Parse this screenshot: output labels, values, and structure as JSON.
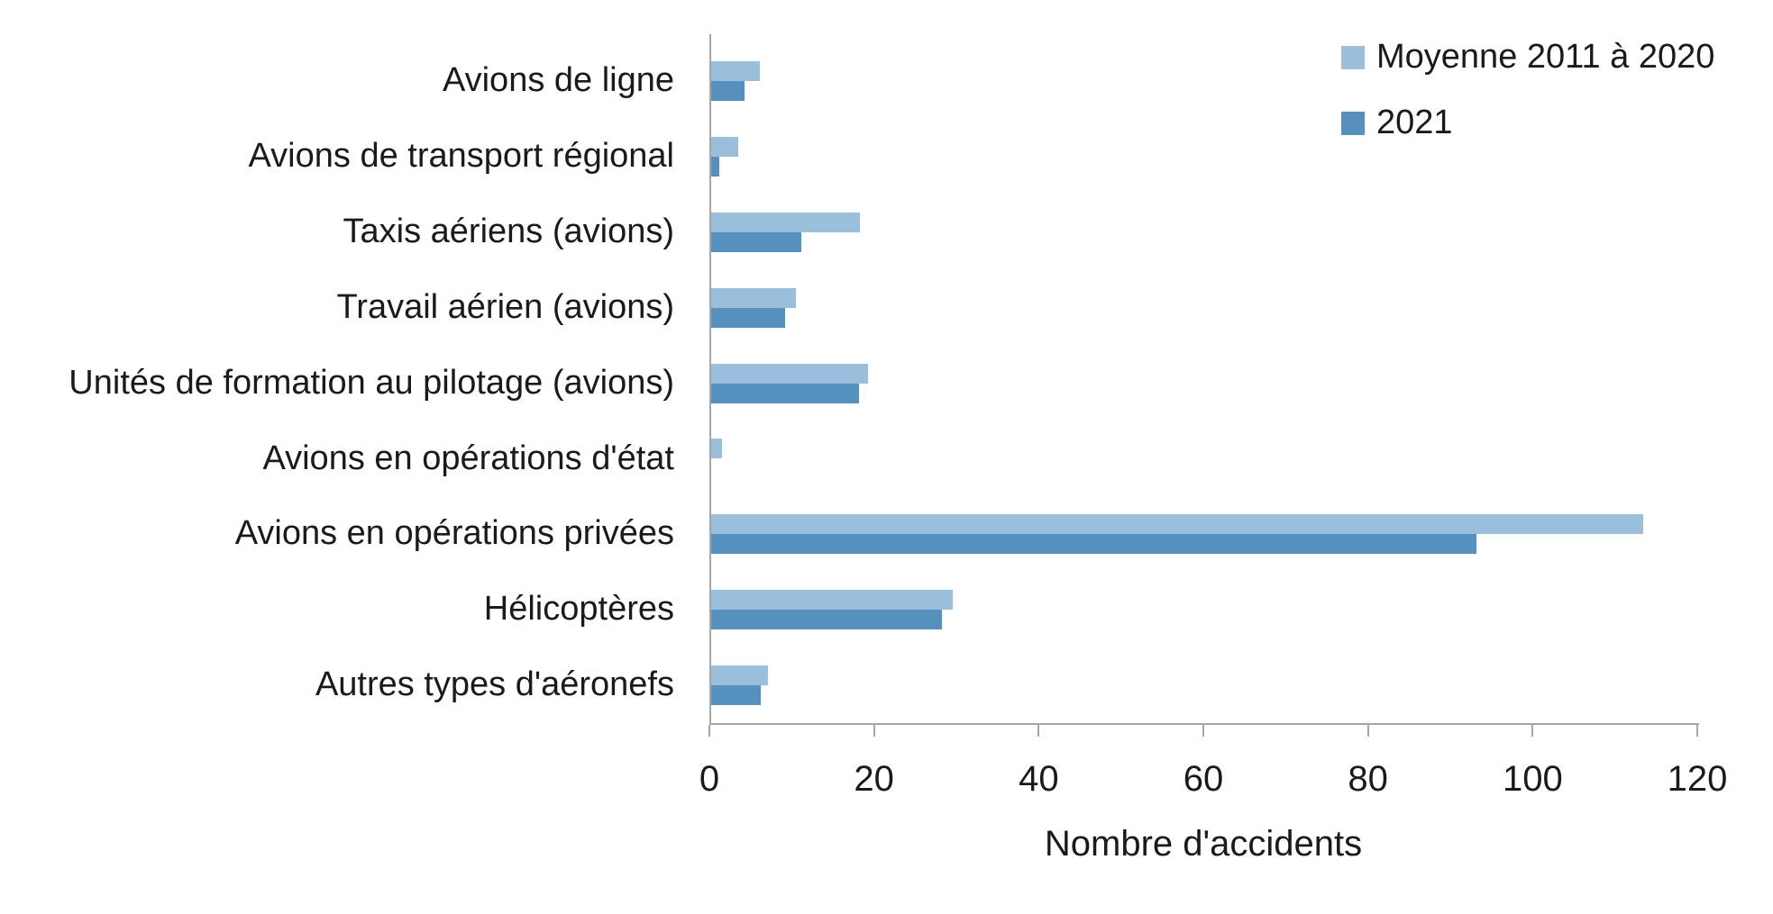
{
  "chart_data": {
    "type": "bar",
    "orientation": "horizontal",
    "title": "",
    "xlabel": "Nombre d'accidents",
    "ylabel": "",
    "categories": [
      "Avions de ligne",
      "Avions de transport régional",
      "Taxis aériens (avions)",
      "Travail aérien (avions)",
      "Unités de formation au pilotage (avions)",
      "Avions en opérations d'état",
      "Avions en opérations privées",
      "Hélicoptères",
      "Autres types d'aéronefs"
    ],
    "series": [
      {
        "name": "Moyenne 2011 à 2020",
        "color": "#9bbeda",
        "values": [
          5.9,
          3.3,
          18.1,
          10.3,
          19.1,
          1.3,
          113.2,
          29.3,
          6.9
        ]
      },
      {
        "name": "2021",
        "color": "#5590be",
        "values": [
          4,
          1,
          11,
          9,
          18,
          0,
          93,
          28,
          6
        ]
      }
    ],
    "x_ticks": [
      0,
      20,
      40,
      60,
      80,
      100,
      120
    ],
    "xlim": [
      0,
      120
    ],
    "grid": false,
    "legend_position": "top-right",
    "axis_color": "#a6a6a6",
    "text_color": "#1a1a1a",
    "background": "#ffffff"
  }
}
